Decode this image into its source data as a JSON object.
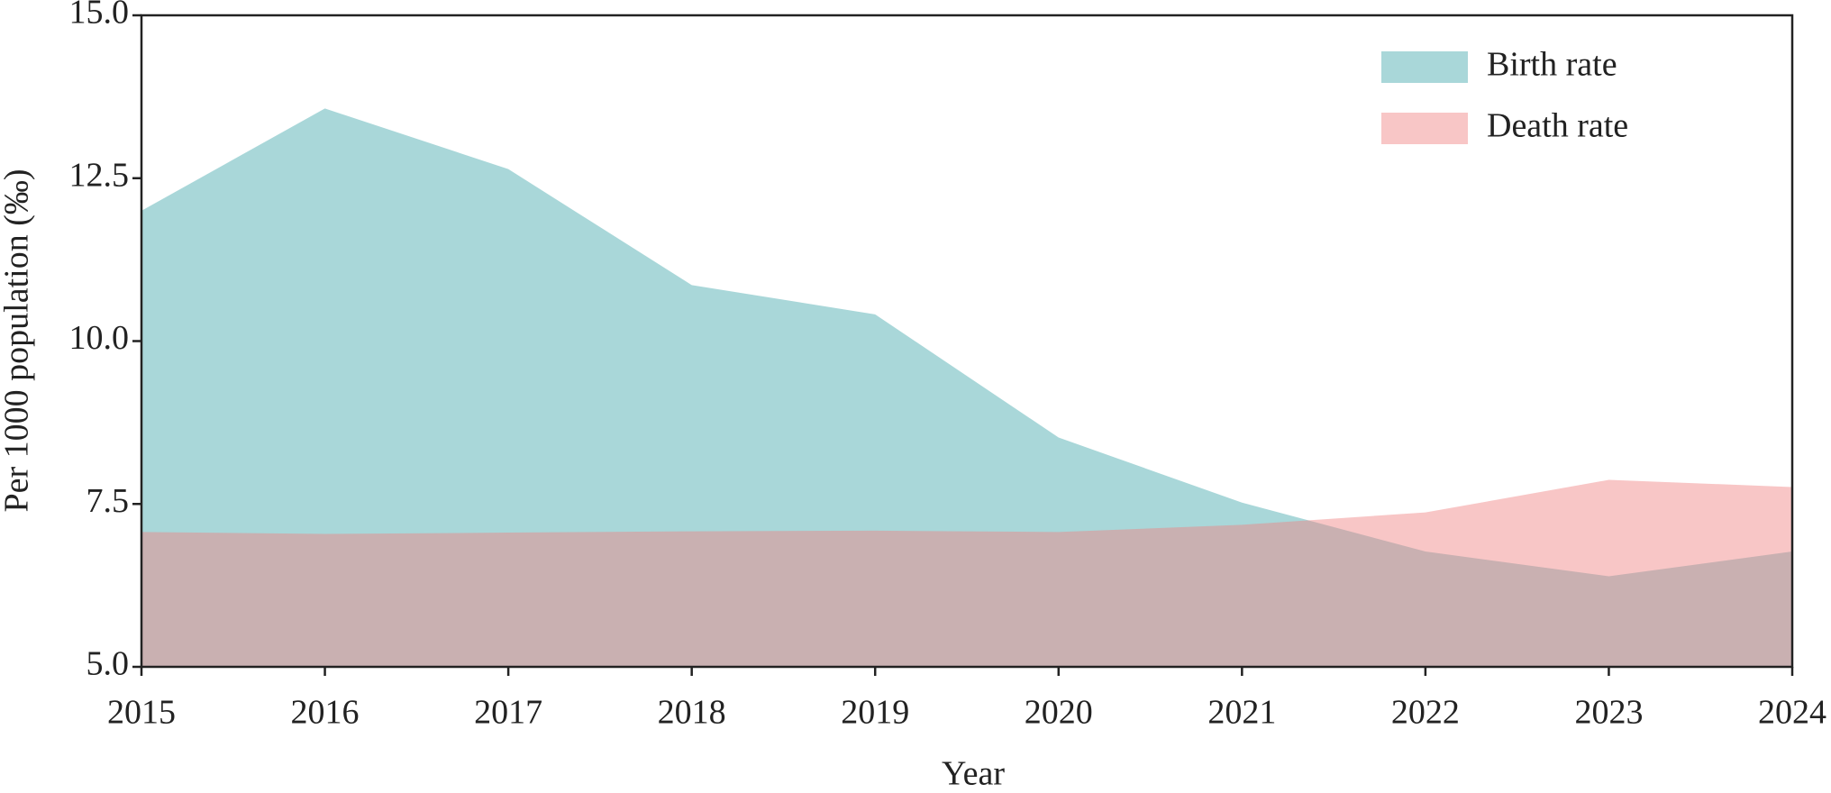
{
  "chart_data": {
    "type": "area",
    "x_label": "Year",
    "y_label": "Per 1000 population (‰)",
    "x": [
      2015,
      2016,
      2017,
      2018,
      2019,
      2020,
      2021,
      2022,
      2023,
      2024
    ],
    "xlim": [
      2015,
      2024
    ],
    "xticks": [
      2015,
      2016,
      2017,
      2018,
      2019,
      2020,
      2021,
      2022,
      2023,
      2024
    ],
    "ylim": [
      5,
      15
    ],
    "yticks": [
      {
        "value": 5,
        "label": "5.0"
      },
      7.5,
      {
        "value": 10,
        "label": "10.0"
      },
      12.5,
      {
        "value": 15,
        "label": "15.0"
      }
    ],
    "legend": "upper right",
    "series": [
      {
        "name": "Birth rate",
        "color": "#a9d7d9",
        "opacity": 1,
        "values": [
          12.0,
          13.57,
          12.64,
          10.86,
          10.41,
          8.52,
          7.52,
          6.77,
          6.39,
          6.77
        ]
      },
      {
        "name": "Death rate",
        "color": "#f08080",
        "opacity": 0.45,
        "values": [
          7.07,
          7.04,
          7.06,
          7.08,
          7.09,
          7.07,
          7.18,
          7.37,
          7.87,
          7.76
        ]
      }
    ]
  }
}
